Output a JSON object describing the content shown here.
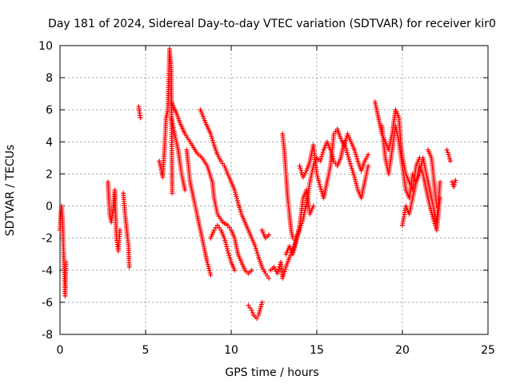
{
  "chart_data": {
    "type": "scatter",
    "title": "Day 181 of 2024, Sidereal Day-to-day VTEC variation (SDTVAR) for receiver kir0",
    "xlabel": "GPS time / hours",
    "ylabel": "SDTVAR / TECUs",
    "xlim": [
      0,
      25
    ],
    "ylim": [
      -8,
      10
    ],
    "xticks": [
      0,
      5,
      10,
      15,
      20,
      25
    ],
    "yticks": [
      -8,
      -6,
      -4,
      -2,
      0,
      2,
      4,
      6,
      8,
      10
    ],
    "grid": true,
    "marker": "+",
    "color": "#ff0000",
    "series": [
      {
        "name": "SDTVAR",
        "segments": [
          [
            [
              0.0,
              -1.5
            ],
            [
              0.05,
              -0.5
            ],
            [
              0.1,
              0.0
            ],
            [
              0.15,
              -1.0
            ],
            [
              0.2,
              -2.5
            ],
            [
              0.25,
              -4.0
            ],
            [
              0.3,
              -5.6
            ],
            [
              0.35,
              -3.5
            ]
          ],
          [
            [
              2.8,
              1.5
            ],
            [
              2.85,
              0.5
            ],
            [
              2.9,
              -0.5
            ],
            [
              3.0,
              -1.0
            ],
            [
              3.1,
              -0.2
            ],
            [
              3.2,
              1.0
            ],
            [
              3.3,
              -2.0
            ],
            [
              3.4,
              -2.8
            ],
            [
              3.5,
              -1.5
            ]
          ],
          [
            [
              3.7,
              0.8
            ],
            [
              3.8,
              -0.5
            ],
            [
              3.9,
              -1.5
            ],
            [
              4.0,
              -2.5
            ],
            [
              4.05,
              -3.8
            ]
          ],
          [
            [
              4.6,
              6.2
            ],
            [
              4.65,
              5.8
            ],
            [
              4.7,
              5.5
            ]
          ],
          [
            [
              5.8,
              2.8
            ],
            [
              6.0,
              1.8
            ],
            [
              6.1,
              3.5
            ],
            [
              6.2,
              5.5
            ],
            [
              6.3,
              6.0
            ],
            [
              6.4,
              9.8
            ],
            [
              6.5,
              8.5
            ],
            [
              6.55,
              0.8
            ]
          ],
          [
            [
              6.5,
              6.5
            ],
            [
              6.8,
              5.8
            ],
            [
              7.0,
              5.2
            ],
            [
              7.3,
              4.5
            ],
            [
              7.6,
              4.0
            ],
            [
              8.0,
              3.3
            ],
            [
              8.3,
              3.0
            ],
            [
              8.6,
              2.5
            ],
            [
              8.9,
              1.5
            ],
            [
              9.0,
              0.5
            ],
            [
              9.2,
              -0.5
            ],
            [
              9.5,
              -1.0
            ],
            [
              9.8,
              -1.2
            ],
            [
              10.0,
              -1.5
            ],
            [
              10.2,
              -2.0
            ],
            [
              10.4,
              -3.0
            ],
            [
              10.6,
              -3.5
            ],
            [
              10.8,
              -4.0
            ],
            [
              11.0,
              -4.2
            ],
            [
              11.2,
              -4.0
            ]
          ],
          [
            [
              6.5,
              5.5
            ],
            [
              6.7,
              4.5
            ],
            [
              6.9,
              3.5
            ],
            [
              7.1,
              2.0
            ],
            [
              7.3,
              1.0
            ]
          ],
          [
            [
              7.4,
              3.5
            ],
            [
              7.5,
              2.5
            ],
            [
              7.6,
              1.5
            ],
            [
              7.8,
              0.5
            ],
            [
              8.0,
              -0.5
            ],
            [
              8.2,
              -1.5
            ],
            [
              8.4,
              -2.5
            ],
            [
              8.6,
              -3.5
            ],
            [
              8.8,
              -4.3
            ]
          ],
          [
            [
              8.8,
              -2.0
            ],
            [
              9.0,
              -1.5
            ],
            [
              9.2,
              -1.2
            ],
            [
              9.4,
              -1.5
            ],
            [
              9.6,
              -2.0
            ],
            [
              9.8,
              -2.8
            ],
            [
              10.0,
              -3.5
            ],
            [
              10.2,
              -4.0
            ]
          ],
          [
            [
              8.2,
              6.0
            ],
            [
              8.5,
              5.2
            ],
            [
              8.8,
              4.5
            ],
            [
              9.0,
              3.8
            ],
            [
              9.2,
              3.2
            ],
            [
              9.4,
              2.8
            ],
            [
              9.6,
              2.5
            ],
            [
              9.8,
              2.0
            ],
            [
              10.0,
              1.5
            ],
            [
              10.2,
              1.0
            ],
            [
              10.4,
              0.2
            ],
            [
              10.6,
              -0.5
            ],
            [
              10.8,
              -1.0
            ],
            [
              11.0,
              -1.5
            ],
            [
              11.2,
              -2.0
            ],
            [
              11.4,
              -2.5
            ],
            [
              11.6,
              -3.2
            ],
            [
              11.8,
              -3.8
            ],
            [
              12.0,
              -4.2
            ],
            [
              12.2,
              -4.5
            ]
          ],
          [
            [
              11.0,
              -6.2
            ],
            [
              11.2,
              -6.5
            ],
            [
              11.3,
              -6.8
            ],
            [
              11.5,
              -7.0
            ],
            [
              11.6,
              -6.8
            ],
            [
              11.8,
              -6.0
            ]
          ],
          [
            [
              12.3,
              -4.0
            ],
            [
              12.5,
              -3.8
            ],
            [
              12.7,
              -4.2
            ],
            [
              12.9,
              -3.5
            ],
            [
              13.0,
              -4.5
            ],
            [
              13.2,
              -3.8
            ],
            [
              13.4,
              -3.2
            ],
            [
              13.6,
              -2.8
            ],
            [
              13.8,
              -2.0
            ],
            [
              14.0,
              -1.5
            ],
            [
              14.2,
              -0.8
            ],
            [
              14.4,
              0.2
            ],
            [
              14.6,
              1.5
            ],
            [
              14.8,
              2.5
            ],
            [
              15.0,
              3.0
            ],
            [
              15.2,
              2.8
            ],
            [
              15.4,
              3.5
            ],
            [
              15.6,
              4.0
            ],
            [
              15.8,
              3.5
            ],
            [
              16.0,
              2.8
            ],
            [
              16.2,
              2.5
            ],
            [
              16.4,
              3.0
            ],
            [
              16.6,
              4.0
            ],
            [
              16.8,
              3.2
            ],
            [
              17.0,
              2.5
            ],
            [
              17.2,
              1.8
            ],
            [
              17.4,
              1.0
            ],
            [
              17.6,
              0.5
            ],
            [
              17.8,
              1.5
            ],
            [
              18.0,
              2.5
            ]
          ],
          [
            [
              13.0,
              4.5
            ],
            [
              13.1,
              3.5
            ],
            [
              13.2,
              2.0
            ],
            [
              13.3,
              0.5
            ],
            [
              13.4,
              -0.5
            ],
            [
              13.5,
              -1.5
            ],
            [
              13.6,
              -2.0
            ]
          ],
          [
            [
              14.0,
              2.5
            ],
            [
              14.2,
              1.8
            ],
            [
              14.4,
              2.2
            ],
            [
              14.6,
              2.8
            ],
            [
              14.8,
              3.8
            ],
            [
              15.0,
              2.0
            ],
            [
              15.2,
              1.2
            ],
            [
              15.4,
              0.5
            ],
            [
              15.6,
              1.5
            ],
            [
              15.8,
              2.5
            ],
            [
              16.0,
              4.5
            ],
            [
              16.2,
              4.8
            ],
            [
              16.4,
              4.2
            ],
            [
              16.6,
              3.8
            ],
            [
              16.8,
              4.5
            ],
            [
              17.0,
              4.0
            ],
            [
              17.2,
              3.5
            ],
            [
              17.4,
              2.8
            ],
            [
              17.6,
              2.2
            ],
            [
              17.8,
              2.8
            ],
            [
              18.0,
              3.2
            ]
          ],
          [
            [
              18.4,
              6.5
            ],
            [
              18.6,
              5.5
            ],
            [
              18.8,
              4.5
            ],
            [
              19.0,
              4.0
            ],
            [
              19.2,
              3.5
            ],
            [
              19.4,
              4.5
            ],
            [
              19.6,
              6.0
            ],
            [
              19.8,
              5.5
            ],
            [
              19.9,
              4.0
            ],
            [
              20.0,
              3.0
            ],
            [
              20.2,
              2.0
            ],
            [
              20.4,
              1.5
            ],
            [
              20.6,
              1.0
            ],
            [
              20.8,
              2.5
            ],
            [
              21.0,
              3.0
            ]
          ],
          [
            [
              18.8,
              5.0
            ],
            [
              19.0,
              3.0
            ],
            [
              19.2,
              2.0
            ],
            [
              19.4,
              3.5
            ],
            [
              19.6,
              5.0
            ],
            [
              19.8,
              4.0
            ],
            [
              20.0,
              2.5
            ],
            [
              20.2,
              1.0
            ],
            [
              20.4,
              0.5
            ],
            [
              20.6,
              2.0
            ],
            [
              20.8,
              1.5
            ],
            [
              21.0,
              2.0
            ],
            [
              21.2,
              3.0
            ],
            [
              21.4,
              2.0
            ],
            [
              21.6,
              1.0
            ],
            [
              21.8,
              0.0
            ],
            [
              22.0,
              -1.0
            ],
            [
              22.2,
              1.5
            ]
          ],
          [
            [
              20.0,
              -1.2
            ],
            [
              20.2,
              0.0
            ],
            [
              20.4,
              -0.5
            ],
            [
              20.6,
              0.5
            ],
            [
              20.8,
              1.5
            ],
            [
              21.0,
              2.5
            ],
            [
              21.2,
              2.0
            ],
            [
              21.4,
              1.0
            ],
            [
              21.6,
              0.0
            ],
            [
              21.8,
              -0.8
            ],
            [
              22.0,
              -1.5
            ],
            [
              22.2,
              0.5
            ]
          ],
          [
            [
              21.5,
              3.5
            ],
            [
              21.7,
              3.0
            ],
            [
              21.8,
              2.0
            ],
            [
              21.9,
              1.0
            ],
            [
              22.0,
              0.0
            ]
          ],
          [
            [
              22.6,
              3.5
            ],
            [
              22.7,
              3.2
            ],
            [
              22.8,
              2.8
            ]
          ],
          [
            [
              22.9,
              1.5
            ],
            [
              23.0,
              1.2
            ],
            [
              23.1,
              1.6
            ]
          ],
          [
            [
              11.8,
              -1.5
            ],
            [
              12.0,
              -2.0
            ],
            [
              12.2,
              -1.8
            ]
          ],
          [
            [
              13.2,
              -3.0
            ],
            [
              13.4,
              -2.5
            ],
            [
              13.6,
              -3.0
            ],
            [
              13.8,
              -2.2
            ],
            [
              14.0,
              -1.2
            ],
            [
              14.2,
              0.5
            ],
            [
              14.4,
              1.0
            ],
            [
              14.6,
              -0.5
            ],
            [
              14.8,
              0.0
            ]
          ]
        ]
      }
    ]
  }
}
